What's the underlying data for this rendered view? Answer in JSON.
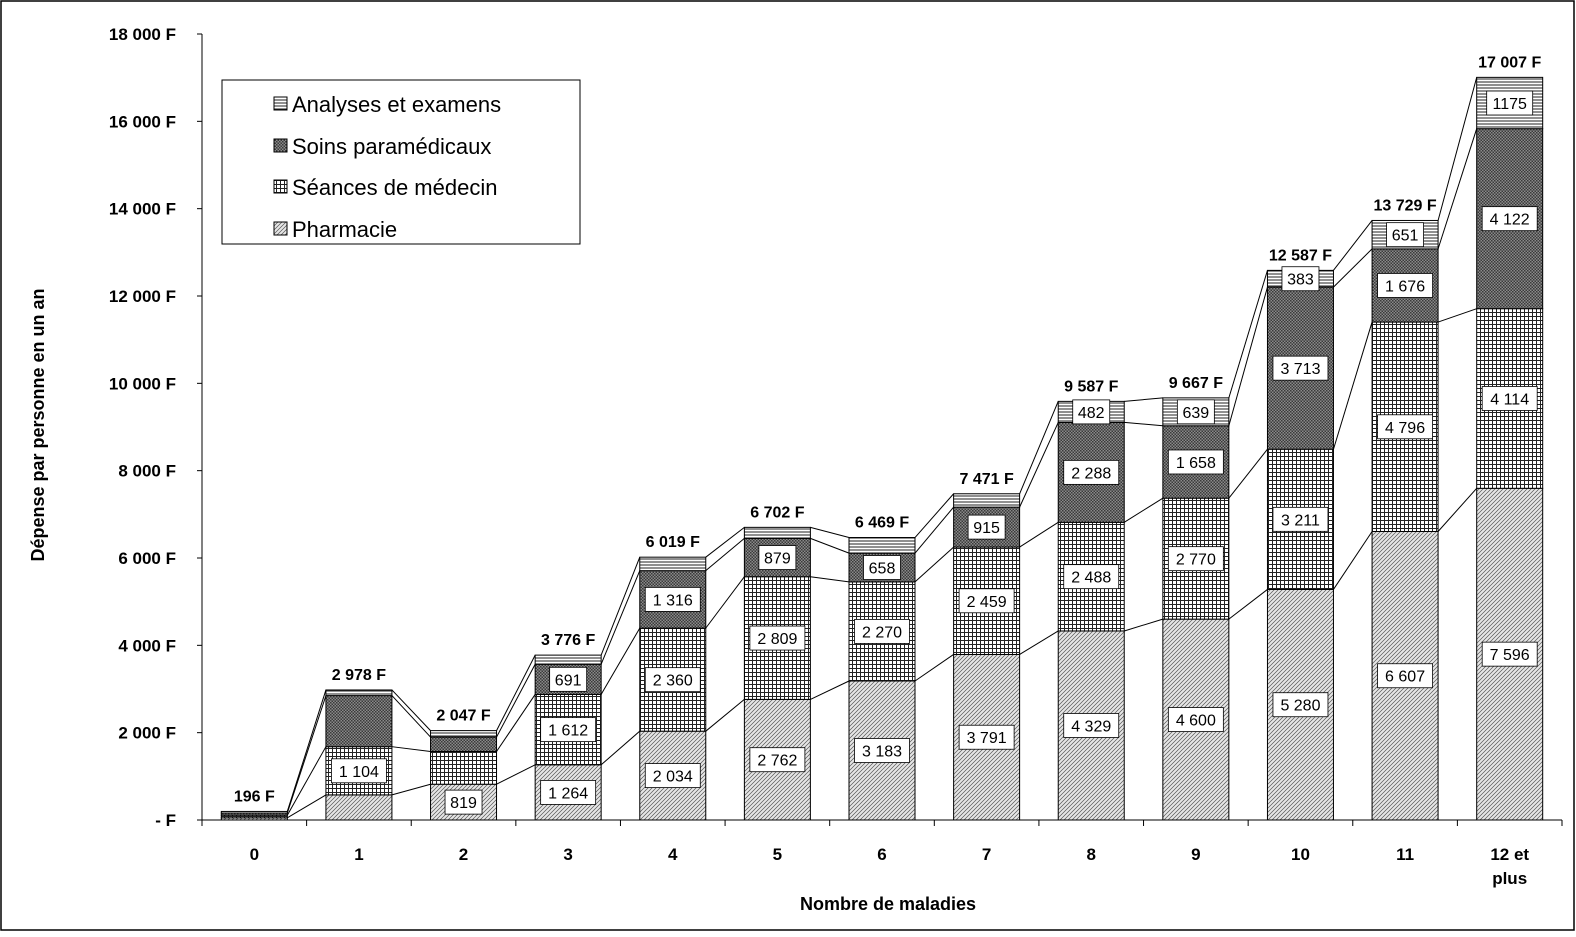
{
  "chart_data": {
    "type": "bar",
    "stacked": true,
    "connector_lines": true,
    "categories": [
      "0",
      "1",
      "2",
      "3",
      "4",
      "5",
      "6",
      "7",
      "8",
      "9",
      "10",
      "11",
      "12 et plus"
    ],
    "series": [
      {
        "name": "Pharmacie",
        "values": [
          50,
          575,
          819,
          1264,
          2034,
          2762,
          3183,
          3791,
          4329,
          4600,
          5280,
          6607,
          7596
        ],
        "value_labels": [
          "",
          "",
          "819",
          "1 264",
          "2 034",
          "2 762",
          "3 183",
          "3 791",
          "4 329",
          "4 600",
          "5 280",
          "6 607",
          "7 596"
        ],
        "pattern": "diag"
      },
      {
        "name": "Séances de médecin",
        "values": [
          60,
          1104,
          750,
          1612,
          2360,
          2809,
          2270,
          2459,
          2488,
          2770,
          3211,
          4796,
          4114
        ],
        "value_labels": [
          "",
          "1 104",
          "",
          "1 612",
          "2 360",
          "2 809",
          "2 270",
          "2 459",
          "2 488",
          "2 770",
          "3 211",
          "4 796",
          "4 114"
        ],
        "pattern": "grid"
      },
      {
        "name": "Soins paramédicaux",
        "values": [
          50,
          1170,
          330,
          691,
          1316,
          879,
          658,
          915,
          2288,
          1658,
          3713,
          1676,
          4122
        ],
        "value_labels": [
          "",
          "",
          "",
          "691",
          "1 316",
          "879",
          "658",
          "915",
          "2 288",
          "1 658",
          "3 713",
          "1 676",
          "4 122"
        ],
        "pattern": "dense"
      },
      {
        "name": "Analyses et examens",
        "values": [
          36,
          129,
          148,
          209,
          309,
          252,
          358,
          306,
          482,
          639,
          383,
          651,
          1175
        ],
        "value_labels": [
          "",
          "",
          "",
          "",
          "",
          "",
          "",
          "",
          "482",
          "639",
          "383",
          "651",
          "1175"
        ],
        "pattern": "hlines"
      }
    ],
    "totals": [
      "196 F",
      "2 978 F",
      "2 047 F",
      "3 776 F",
      "6 019 F",
      "6 702 F",
      "6 469 F",
      "7 471 F",
      "9 587 F",
      "9 667 F",
      "12 587 F",
      "13 729 F",
      "17 007 F"
    ],
    "ylabel": "Dépense par personne en un an",
    "xlabel": "Nombre de maladies",
    "ylim": [
      0,
      18000
    ],
    "yticks": [
      0,
      2000,
      4000,
      6000,
      8000,
      10000,
      12000,
      14000,
      16000,
      18000
    ],
    "ytick_labels": [
      "-      F",
      "2 000 F",
      "4 000 F",
      "6 000 F",
      "8 000 F",
      "10 000 F",
      "12 000 F",
      "14 000 F",
      "16 000 F",
      "18 000 F"
    ],
    "legend_order": [
      "Analyses et examens",
      "Soins paramédicaux",
      "Séances de médecin",
      "Pharmacie"
    ],
    "legend_position": "top-left",
    "grid": false
  }
}
